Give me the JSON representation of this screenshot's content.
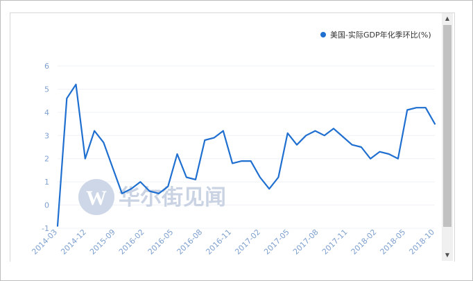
{
  "chart_data": {
    "type": "line",
    "series": [
      {
        "name": "美国-实际GDP年化季环比(%)",
        "color": "#1f6fd1",
        "values": [
          -0.9,
          4.6,
          5.2,
          2.0,
          3.2,
          2.7,
          1.6,
          0.5,
          0.7,
          1.0,
          0.6,
          0.5,
          0.8,
          2.2,
          1.2,
          1.1,
          2.8,
          2.9,
          3.2,
          1.8,
          1.9,
          1.9,
          1.2,
          0.7,
          1.2,
          3.1,
          2.6,
          3.0,
          3.2,
          3.0,
          3.3,
          2.95,
          2.6,
          2.5,
          2.0,
          2.3,
          2.2,
          2.0,
          4.1,
          4.2,
          4.2,
          3.5
        ]
      }
    ],
    "x_tick_labels": [
      "2014-03",
      "2014-12",
      "2015-09",
      "2016-02",
      "2016-05",
      "2016-08",
      "2016-11",
      "2017-02",
      "2017-05",
      "2017-08",
      "2017-11",
      "2018-02",
      "2018-05",
      "2018-10"
    ],
    "y_ticks": [
      -1,
      0,
      1,
      2,
      3,
      4,
      5,
      6
    ],
    "ylim": [
      -1,
      6
    ],
    "legend_position": "top-right",
    "grid": "horizontal"
  },
  "watermark": {
    "text": "华尔街见闻",
    "logo_letter": "W"
  },
  "scrollbar": {
    "up_arrow": "▲",
    "down_arrow": "▼"
  }
}
